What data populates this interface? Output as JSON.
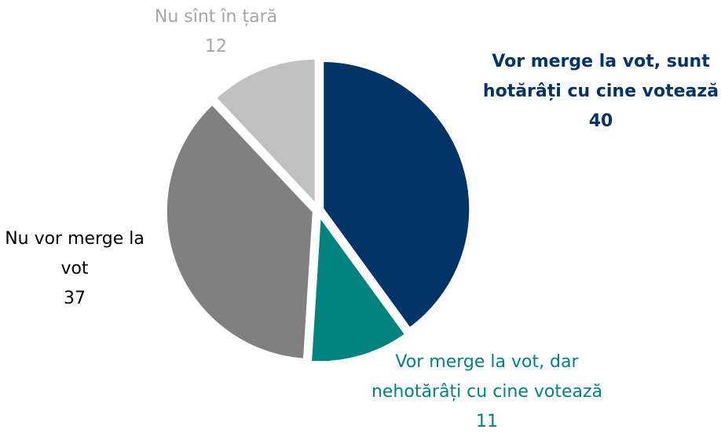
{
  "chart_data": {
    "type": "pie",
    "categories": [
      "Vor merge la vot, sunt hotărâți cu cine votează",
      "Vor merge la vot, dar nehotărâți cu cine votează",
      "Nu vor merge la vot",
      "Nu sînt în țară"
    ],
    "values": [
      40,
      11,
      37,
      12
    ],
    "colors": [
      "#003366",
      "#00827f",
      "#808080",
      "#c0c0c0"
    ],
    "label_colors": [
      "#003366",
      "#00827f",
      "#000000",
      "#a6a6a6"
    ]
  }
}
